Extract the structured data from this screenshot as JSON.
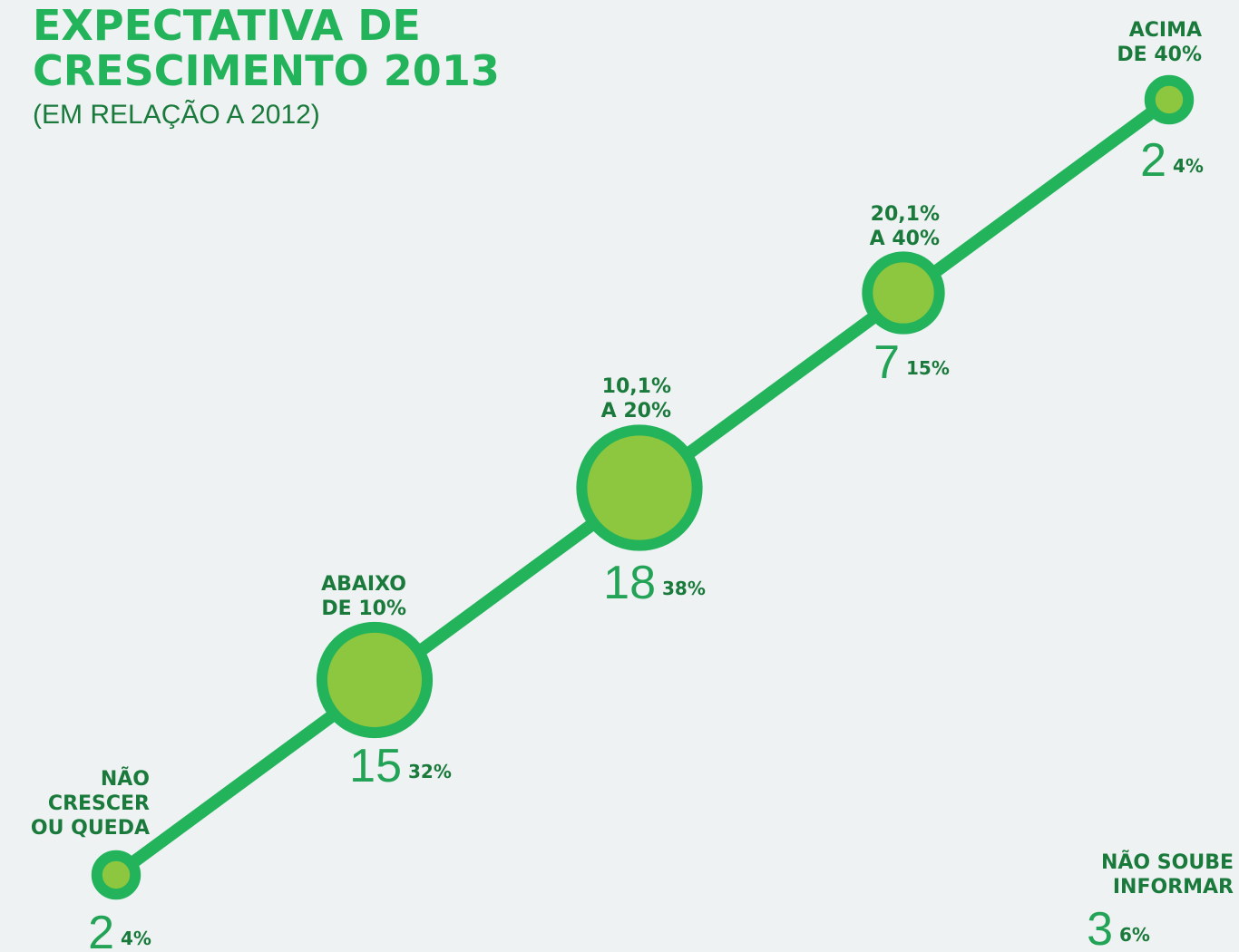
{
  "chart_data": {
    "type": "bubble",
    "title": [
      "EXPECTATIVA DE",
      "CRESCIMENTO 2013"
    ],
    "subtitle": "(EM RELAÇÃO A 2012)",
    "categories": [
      [
        "NÃO",
        "CRESCER",
        "OU QUEDA"
      ],
      [
        "ABAIXO",
        "DE 10%"
      ],
      [
        "10,1%",
        "A 20%"
      ],
      [
        "20,1%",
        "A 40%"
      ],
      [
        "ACIMA",
        "DE 40%"
      ],
      [
        "NÃO SOUBE",
        "INFORMAR"
      ]
    ],
    "values": [
      2,
      15,
      18,
      7,
      2,
      3
    ],
    "shares": {
      "values": [
        4,
        32,
        38,
        15,
        4,
        6
      ],
      "value_labels": [
        "4%",
        "32%",
        "38%",
        "15%",
        "4%",
        "6%"
      ]
    },
    "color": "#8dc63f",
    "line_color": "#22b35b"
  }
}
